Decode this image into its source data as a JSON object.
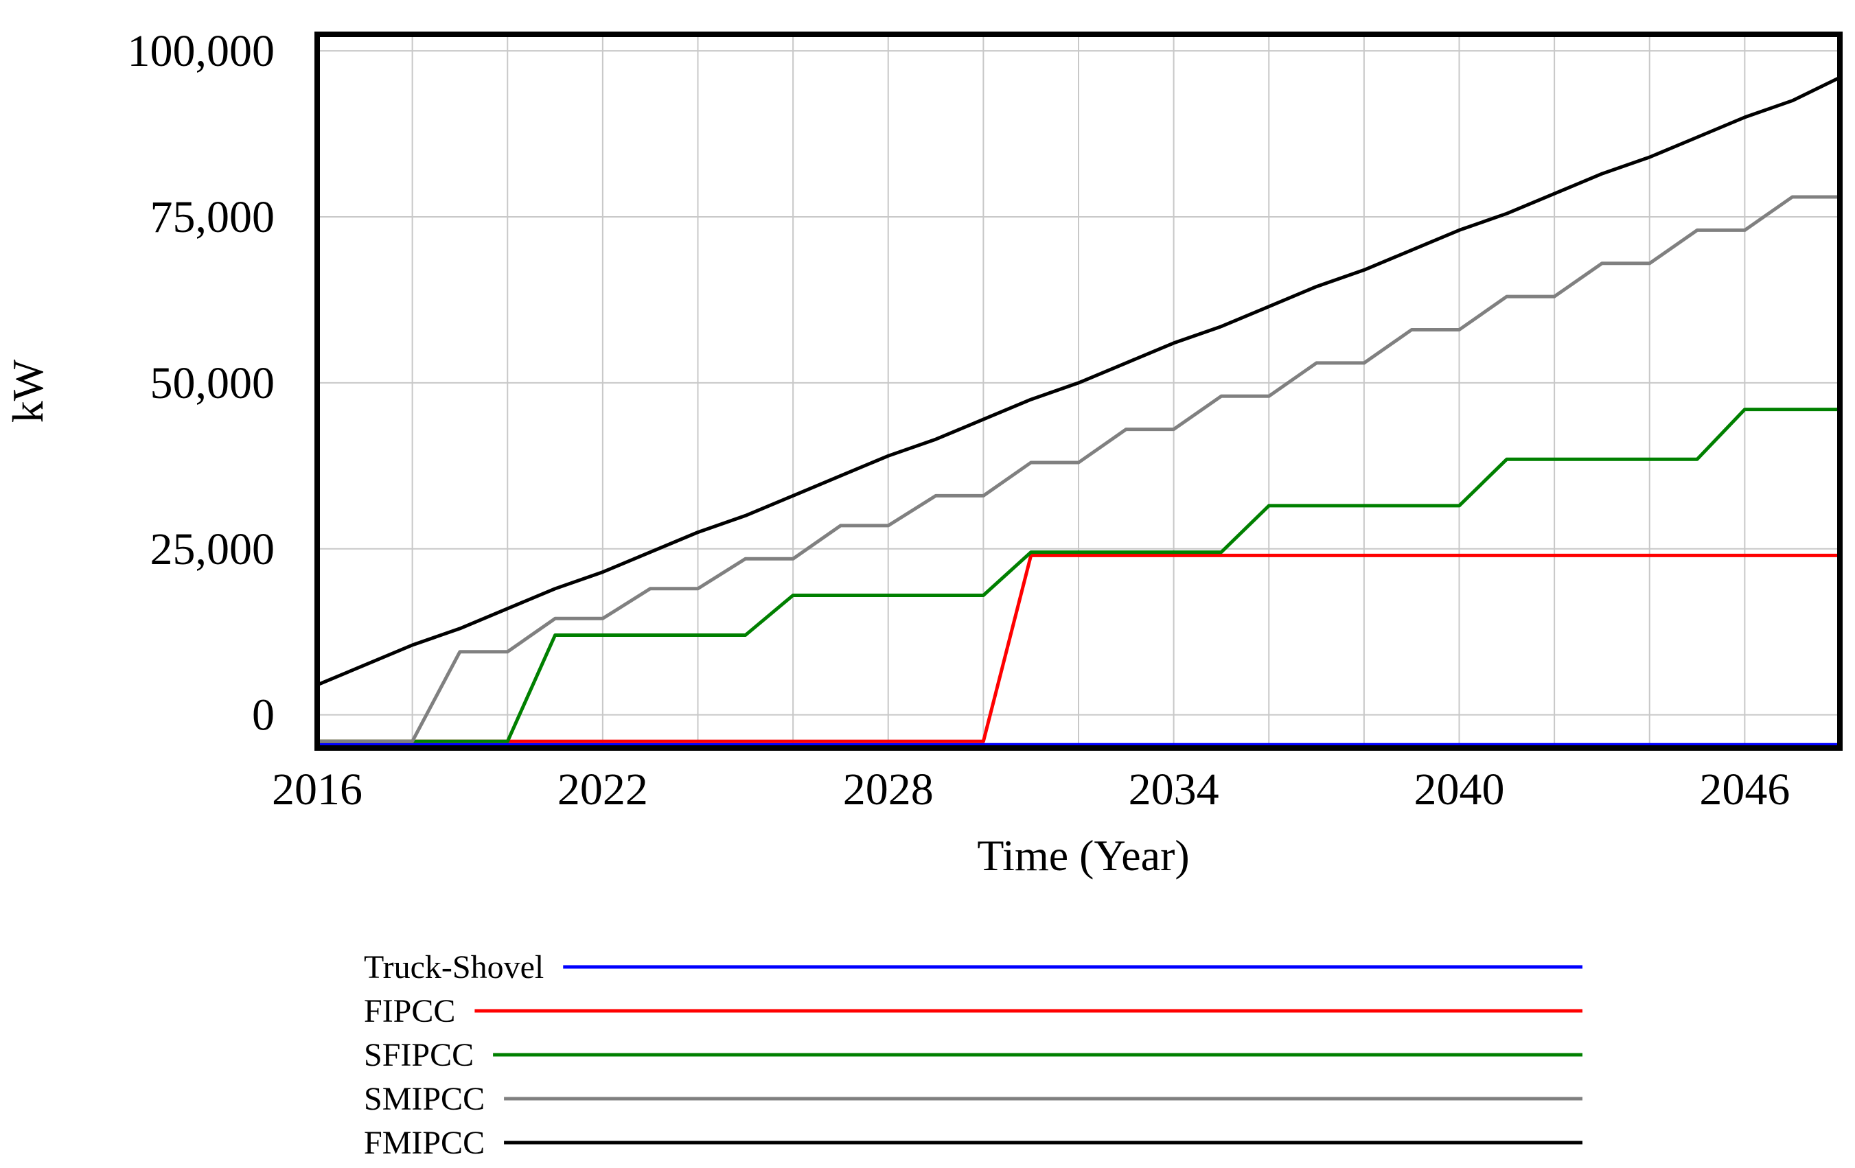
{
  "chart_data": {
    "type": "line",
    "title": "",
    "xlabel": "Time (Year)",
    "ylabel": "kW",
    "xlim": [
      2016,
      2048
    ],
    "ylim": [
      -5000,
      102500
    ],
    "x_ticks": [
      2016,
      2022,
      2028,
      2034,
      2040,
      2046
    ],
    "y_ticks": [
      0,
      25000,
      50000,
      75000,
      100000
    ],
    "y_tick_labels": [
      "0",
      "25,000",
      "50,000",
      "75,000",
      "100,000"
    ],
    "grid": true,
    "legend_position": "bottom",
    "series": [
      {
        "name": "Truck-Shovel",
        "color": "#0000ff",
        "x": [
          2016,
          2048
        ],
        "y": [
          -4500,
          -4500
        ]
      },
      {
        "name": "FIPCC",
        "color": "#ff0000",
        "x": [
          2016,
          2030,
          2031,
          2048
        ],
        "y": [
          -4000,
          -4000,
          24000,
          24000
        ]
      },
      {
        "name": "SFIPCC",
        "color": "#008000",
        "x": [
          2016,
          2020,
          2021,
          2025,
          2026,
          2030,
          2031,
          2035,
          2036,
          2040,
          2041,
          2045,
          2046,
          2048
        ],
        "y": [
          -4000,
          -4000,
          12000,
          12000,
          18000,
          18000,
          24500,
          24500,
          31500,
          31500,
          38500,
          38500,
          46000,
          46000
        ]
      },
      {
        "name": "SMIPCC",
        "color": "#808080",
        "x": [
          2016,
          2018,
          2019,
          2020,
          2021,
          2022,
          2023,
          2024,
          2025,
          2026,
          2027,
          2028,
          2029,
          2030,
          2031,
          2032,
          2033,
          2034,
          2035,
          2036,
          2037,
          2038,
          2039,
          2040,
          2041,
          2042,
          2043,
          2044,
          2045,
          2046,
          2047,
          2048
        ],
        "y": [
          -4000,
          -4000,
          9500,
          9500,
          14500,
          14500,
          19000,
          19000,
          23500,
          23500,
          28500,
          28500,
          33000,
          33000,
          38000,
          38000,
          43000,
          43000,
          48000,
          48000,
          53000,
          53000,
          58000,
          58000,
          63000,
          63000,
          68000,
          68000,
          73000,
          73000,
          78000,
          78000
        ]
      },
      {
        "name": "FMIPCC",
        "color": "#000000",
        "x": [
          2016,
          2017,
          2018,
          2019,
          2020,
          2021,
          2022,
          2023,
          2024,
          2025,
          2026,
          2027,
          2028,
          2029,
          2030,
          2031,
          2032,
          2033,
          2034,
          2035,
          2036,
          2037,
          2038,
          2039,
          2040,
          2041,
          2042,
          2043,
          2044,
          2045,
          2046,
          2047,
          2048
        ],
        "y": [
          4500,
          7500,
          10500,
          13000,
          16000,
          19000,
          21500,
          24500,
          27500,
          30000,
          33000,
          36000,
          39000,
          41500,
          44500,
          47500,
          50000,
          53000,
          56000,
          58500,
          61500,
          64500,
          67000,
          70000,
          73000,
          75500,
          78500,
          81500,
          84000,
          87000,
          90000,
          92500,
          96000
        ]
      }
    ]
  }
}
